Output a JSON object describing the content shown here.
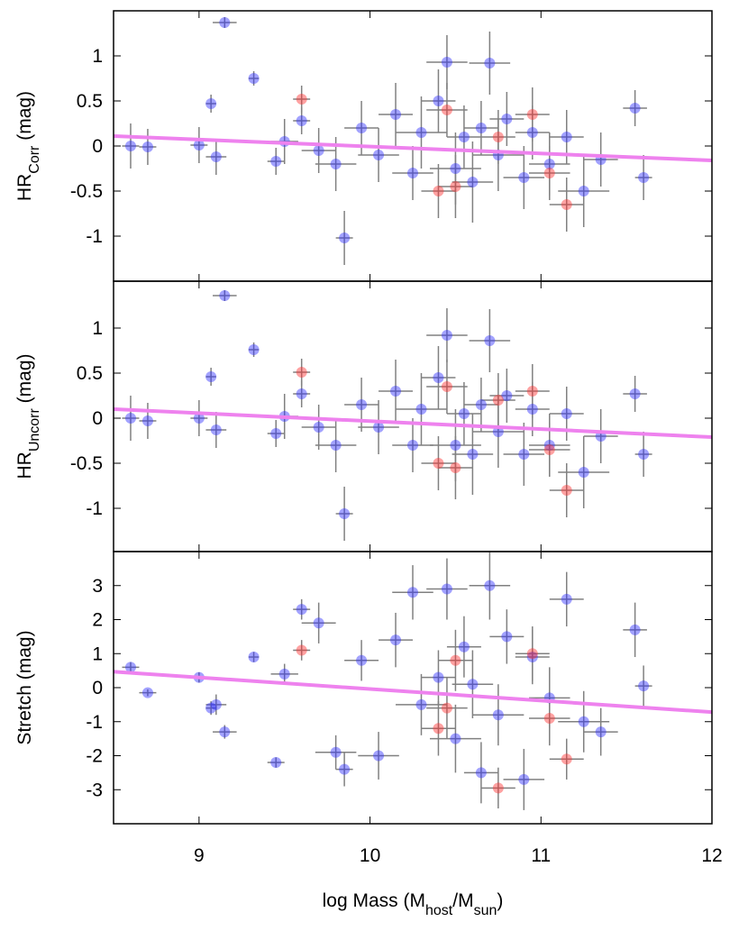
{
  "chart_data": [
    {
      "type": "scatter",
      "ylabel": [
        {
          "text": "HR"
        },
        {
          "text": "Corr",
          "sub": true
        },
        {
          "text": " (mag)"
        }
      ],
      "xlim": [
        8.5,
        12
      ],
      "xticks": [
        9,
        10,
        11,
        12
      ],
      "show_xticklabels": false,
      "ylim": [
        -1.5,
        1.5
      ],
      "yticks": [
        -1,
        -0.5,
        0,
        0.5,
        1
      ],
      "series": [
        {
          "color": "#3030ff",
          "x": [
            8.6,
            8.7,
            9.0,
            9.07,
            9.1,
            9.15,
            9.32,
            9.45,
            9.5,
            9.6,
            9.7,
            9.8,
            9.85,
            9.95,
            10.05,
            10.15,
            10.25,
            10.3,
            10.4,
            10.45,
            10.5,
            10.55,
            10.6,
            10.65,
            10.7,
            10.75,
            10.8,
            10.9,
            10.95,
            11.05,
            11.15,
            11.25,
            11.35,
            11.55,
            11.6
          ],
          "xerr": [
            0.05,
            0.05,
            0.05,
            0.03,
            0.06,
            0.07,
            0.03,
            0.05,
            0.08,
            0.05,
            0.1,
            0.12,
            0.05,
            0.1,
            0.12,
            0.1,
            0.12,
            0.15,
            0.1,
            0.12,
            0.15,
            0.1,
            0.12,
            0.1,
            0.12,
            0.15,
            0.1,
            0.12,
            0.1,
            0.12,
            0.1,
            0.15,
            0.1,
            0.07,
            0.05
          ],
          "values": [
            0,
            -0.01,
            0.01,
            0.47,
            -0.12,
            1.37,
            0.75,
            -0.17,
            0.05,
            0.28,
            -0.05,
            -0.2,
            -1.02,
            0.2,
            -0.1,
            0.35,
            -0.3,
            0.15,
            0.5,
            0.93,
            -0.25,
            0.1,
            -0.4,
            0.2,
            0.92,
            -0.1,
            0.3,
            -0.35,
            0.15,
            -0.2,
            0.1,
            -0.5,
            -0.15,
            0.42,
            -0.35
          ],
          "yerr": [
            0.25,
            0.2,
            0.2,
            0.1,
            0.2,
            0.06,
            0.08,
            0.15,
            0.25,
            0.15,
            0.25,
            0.3,
            0.3,
            0.3,
            0.3,
            0.35,
            0.3,
            0.4,
            0.35,
            0.3,
            0.4,
            0.35,
            0.45,
            0.3,
            0.35,
            0.4,
            0.3,
            0.35,
            0.3,
            0.35,
            0.3,
            0.4,
            0.3,
            0.2,
            0.25
          ]
        },
        {
          "color": "#ff3030",
          "x": [
            9.6,
            10.4,
            10.45,
            10.5,
            10.75,
            10.95,
            11.05,
            11.15
          ],
          "xerr": [
            0.05,
            0.1,
            0.12,
            0.1,
            0.1,
            0.1,
            0.12,
            0.1
          ],
          "values": [
            0.52,
            -0.5,
            0.4,
            -0.45,
            0.1,
            0.35,
            -0.3,
            -0.65
          ],
          "yerr": [
            0.15,
            0.3,
            0.3,
            0.35,
            0.3,
            0.3,
            0.3,
            0.3
          ]
        }
      ],
      "fit": {
        "color": "#ee82ee",
        "x": [
          8.5,
          12
        ],
        "values": [
          0.11,
          -0.16
        ]
      }
    },
    {
      "type": "scatter",
      "ylabel": [
        {
          "text": "HR"
        },
        {
          "text": "Uncorr",
          "sub": true
        },
        {
          "text": " (mag)"
        }
      ],
      "xlim": [
        8.5,
        12
      ],
      "xticks": [
        9,
        10,
        11,
        12
      ],
      "show_xticklabels": false,
      "ylim": [
        -1.48,
        1.52
      ],
      "yticks": [
        -1,
        -0.5,
        0,
        0.5,
        1
      ],
      "series": [
        {
          "color": "#3030ff",
          "x": [
            8.6,
            8.7,
            9.0,
            9.07,
            9.1,
            9.15,
            9.32,
            9.45,
            9.5,
            9.6,
            9.7,
            9.8,
            9.85,
            9.95,
            10.05,
            10.15,
            10.25,
            10.3,
            10.4,
            10.45,
            10.5,
            10.55,
            10.6,
            10.65,
            10.7,
            10.75,
            10.8,
            10.9,
            10.95,
            11.05,
            11.15,
            11.25,
            11.35,
            11.55,
            11.6
          ],
          "xerr": [
            0.05,
            0.05,
            0.05,
            0.03,
            0.06,
            0.07,
            0.03,
            0.05,
            0.08,
            0.05,
            0.1,
            0.12,
            0.05,
            0.1,
            0.12,
            0.1,
            0.12,
            0.15,
            0.1,
            0.12,
            0.15,
            0.1,
            0.12,
            0.1,
            0.12,
            0.15,
            0.1,
            0.12,
            0.1,
            0.12,
            0.1,
            0.15,
            0.1,
            0.07,
            0.05
          ],
          "values": [
            0,
            -0.03,
            0,
            0.46,
            -0.13,
            1.36,
            0.76,
            -0.17,
            0.02,
            0.27,
            -0.1,
            -0.3,
            -1.06,
            0.15,
            -0.1,
            0.3,
            -0.3,
            0.1,
            0.45,
            0.92,
            -0.3,
            0.05,
            -0.4,
            0.15,
            0.86,
            -0.15,
            0.25,
            -0.4,
            0.1,
            -0.3,
            0.05,
            -0.6,
            -0.2,
            0.27,
            -0.4
          ],
          "yerr": [
            0.25,
            0.2,
            0.2,
            0.1,
            0.2,
            0.06,
            0.08,
            0.15,
            0.25,
            0.15,
            0.25,
            0.3,
            0.3,
            0.3,
            0.3,
            0.35,
            0.3,
            0.4,
            0.35,
            0.3,
            0.4,
            0.35,
            0.45,
            0.3,
            0.35,
            0.4,
            0.3,
            0.35,
            0.3,
            0.35,
            0.3,
            0.4,
            0.3,
            0.2,
            0.25
          ]
        },
        {
          "color": "#ff3030",
          "x": [
            9.6,
            10.4,
            10.45,
            10.5,
            10.75,
            10.95,
            11.05,
            11.15
          ],
          "xerr": [
            0.05,
            0.1,
            0.12,
            0.1,
            0.1,
            0.1,
            0.12,
            0.1
          ],
          "values": [
            0.51,
            -0.5,
            0.35,
            -0.55,
            0.2,
            0.3,
            -0.35,
            -0.8
          ],
          "yerr": [
            0.15,
            0.3,
            0.3,
            0.35,
            0.3,
            0.3,
            0.3,
            0.3
          ]
        }
      ],
      "fit": {
        "color": "#ee82ee",
        "x": [
          8.5,
          12
        ],
        "values": [
          0.1,
          -0.21
        ]
      }
    },
    {
      "type": "scatter",
      "ylabel": [
        {
          "text": "Stretch (mag)"
        }
      ],
      "xlabel": [
        {
          "text": "log Mass (M"
        },
        {
          "text": "host",
          "sub": true
        },
        {
          "text": "/M"
        },
        {
          "text": "sun",
          "sub": true
        },
        {
          "text": ")"
        }
      ],
      "xlim": [
        8.5,
        12
      ],
      "xticks": [
        9,
        10,
        11,
        12
      ],
      "show_xticklabels": true,
      "ylim": [
        -4,
        4
      ],
      "yticks": [
        -3,
        -2,
        -1,
        0,
        1,
        2,
        3
      ],
      "series": [
        {
          "color": "#3030ff",
          "x": [
            8.6,
            8.7,
            9.0,
            9.07,
            9.1,
            9.15,
            9.32,
            9.45,
            9.5,
            9.6,
            9.7,
            9.8,
            9.85,
            9.95,
            10.05,
            10.15,
            10.25,
            10.3,
            10.4,
            10.45,
            10.5,
            10.55,
            10.6,
            10.65,
            10.7,
            10.75,
            10.8,
            10.9,
            10.95,
            11.05,
            11.15,
            11.25,
            11.35,
            11.55,
            11.6
          ],
          "xerr": [
            0.05,
            0.05,
            0.05,
            0.03,
            0.06,
            0.07,
            0.03,
            0.05,
            0.08,
            0.05,
            0.1,
            0.12,
            0.05,
            0.1,
            0.12,
            0.1,
            0.12,
            0.15,
            0.1,
            0.12,
            0.15,
            0.1,
            0.12,
            0.1,
            0.12,
            0.15,
            0.1,
            0.12,
            0.1,
            0.12,
            0.1,
            0.15,
            0.1,
            0.07,
            0.05
          ],
          "values": [
            0.6,
            -0.15,
            0.3,
            -0.6,
            -0.5,
            -1.3,
            0.9,
            -2.2,
            0.4,
            2.3,
            1.9,
            -1.9,
            -2.4,
            0.8,
            -2.0,
            1.4,
            2.8,
            -0.5,
            0.3,
            2.9,
            -1.5,
            1.2,
            0.1,
            -2.5,
            3.0,
            -0.8,
            1.5,
            -2.7,
            0.9,
            -0.3,
            2.6,
            -1.0,
            -1.3,
            1.7,
            0.05
          ],
          "yerr": [
            0.15,
            0.1,
            0.15,
            0.2,
            0.3,
            0.2,
            0.15,
            0.15,
            0.3,
            0.3,
            0.6,
            0.5,
            0.5,
            0.6,
            0.7,
            0.8,
            0.8,
            0.9,
            0.8,
            0.9,
            1.0,
            0.9,
            1.0,
            0.9,
            1.0,
            0.9,
            0.8,
            0.9,
            0.8,
            0.9,
            0.8,
            0.9,
            0.7,
            0.8,
            0.6
          ]
        },
        {
          "color": "#ff3030",
          "x": [
            9.6,
            10.4,
            10.45,
            10.5,
            10.75,
            10.95,
            11.05,
            11.15
          ],
          "xerr": [
            0.05,
            0.1,
            0.12,
            0.1,
            0.1,
            0.1,
            0.12,
            0.1
          ],
          "values": [
            1.1,
            -1.2,
            -0.6,
            0.8,
            -2.95,
            1.0,
            -0.9,
            -2.1
          ],
          "yerr": [
            0.3,
            0.8,
            0.9,
            0.9,
            0.6,
            0.8,
            0.8,
            0.6
          ]
        }
      ],
      "fit": {
        "color": "#ee82ee",
        "x": [
          8.5,
          12
        ],
        "values": [
          0.47,
          -0.72
        ]
      }
    }
  ]
}
